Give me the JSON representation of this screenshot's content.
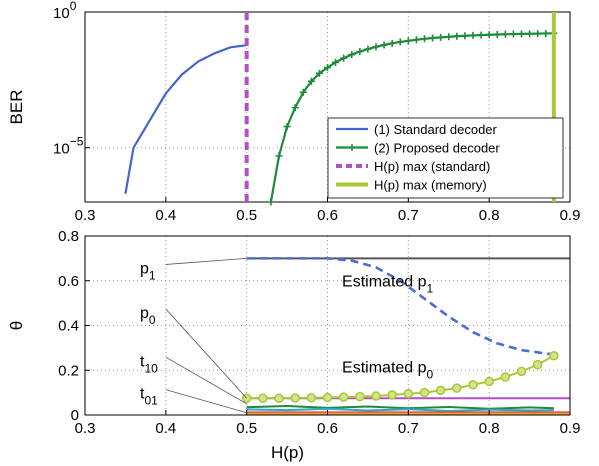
{
  "chart_data": [
    {
      "type": "line",
      "panel": "top",
      "ylabel": "BER",
      "xlim": [
        0.3,
        0.9
      ],
      "ylim_log10": [
        -7,
        0
      ],
      "x_ticks": [
        0.3,
        0.4,
        0.5,
        0.6,
        0.7,
        0.8,
        0.9
      ],
      "x_tick_labels": [
        "0.3",
        "0.4",
        "0.5",
        "0.6",
        "0.7",
        "0.8",
        "0.9"
      ],
      "y_ticks_log10": [
        0,
        -5
      ],
      "y_tick_labels": [
        {
          "base": "10",
          "exp": "0"
        },
        {
          "base": "10",
          "exp": "−5"
        }
      ],
      "grid": true,
      "scale": "log",
      "legend_position": "lower-right",
      "series": [
        {
          "name": "(1) Standard decoder",
          "color": "#4466cc",
          "marker": "none",
          "x": [
            0.35,
            0.36,
            0.38,
            0.4,
            0.42,
            0.44,
            0.46,
            0.48,
            0.5
          ],
          "y": [
            2e-07,
            1e-05,
            0.0001,
            0.001,
            0.005,
            0.015,
            0.03,
            0.05,
            0.06
          ]
        },
        {
          "name": "(2) Proposed decoder",
          "color": "#1e8a3c",
          "marker": "plus",
          "x": [
            0.53,
            0.54,
            0.55,
            0.56,
            0.57,
            0.58,
            0.59,
            0.6,
            0.61,
            0.62,
            0.63,
            0.64,
            0.65,
            0.66,
            0.67,
            0.68,
            0.69,
            0.7,
            0.71,
            0.72,
            0.73,
            0.74,
            0.75,
            0.76,
            0.77,
            0.78,
            0.79,
            0.8,
            0.81,
            0.82,
            0.83,
            0.84,
            0.85,
            0.86,
            0.87,
            0.88
          ],
          "y": [
            1e-07,
            5e-06,
            6e-05,
            0.0003,
            0.0011,
            0.0028,
            0.0055,
            0.009,
            0.014,
            0.02,
            0.027,
            0.035,
            0.043,
            0.052,
            0.061,
            0.07,
            0.079,
            0.087,
            0.095,
            0.103,
            0.11,
            0.116,
            0.122,
            0.128,
            0.133,
            0.137,
            0.141,
            0.145,
            0.148,
            0.151,
            0.154,
            0.156,
            0.158,
            0.16,
            0.162,
            0.164
          ]
        },
        {
          "name": "H(p) max (standard)",
          "color": "#b44fc8",
          "style": "dashed-vertical",
          "x": [
            0.5
          ]
        },
        {
          "name": "H(p) max (memory)",
          "color": "#a8c83a",
          "style": "solid-vertical",
          "x": [
            0.88
          ]
        }
      ]
    },
    {
      "type": "line",
      "panel": "bottom",
      "xlabel": "H(p)",
      "ylabel": "θ",
      "xlim": [
        0.3,
        0.9
      ],
      "ylim": [
        0,
        0.8
      ],
      "x_ticks": [
        0.3,
        0.4,
        0.5,
        0.6,
        0.7,
        0.8,
        0.9
      ],
      "x_tick_labels": [
        "0.3",
        "0.4",
        "0.5",
        "0.6",
        "0.7",
        "0.8",
        "0.9"
      ],
      "y_ticks": [
        0,
        0.2,
        0.4,
        0.6,
        0.8
      ],
      "y_tick_labels": [
        "0",
        "0.2",
        "0.4",
        "0.6",
        "0.8"
      ],
      "grid": true,
      "series": [
        {
          "color": "#555555",
          "style": "solid",
          "x": [
            0.5,
            0.9
          ],
          "y": [
            0.7,
            0.7
          ]
        },
        {
          "color": "#4a6fd0",
          "style": "dashed",
          "x": [
            0.5,
            0.55,
            0.6,
            0.63,
            0.66,
            0.69,
            0.72,
            0.75,
            0.78,
            0.81,
            0.84,
            0.86,
            0.88
          ],
          "y": [
            0.7,
            0.7,
            0.7,
            0.69,
            0.66,
            0.6,
            0.52,
            0.44,
            0.37,
            0.32,
            0.29,
            0.28,
            0.27
          ]
        },
        {
          "color": "#b44fc8",
          "style": "solid",
          "x": [
            0.5,
            0.9
          ],
          "y": [
            0.075,
            0.075
          ]
        },
        {
          "color": "#a8c83a",
          "style": "solid",
          "marker": "circle",
          "x": [
            0.5,
            0.52,
            0.54,
            0.56,
            0.58,
            0.6,
            0.62,
            0.64,
            0.66,
            0.68,
            0.7,
            0.72,
            0.74,
            0.76,
            0.78,
            0.8,
            0.82,
            0.84,
            0.86,
            0.88
          ],
          "y": [
            0.075,
            0.075,
            0.075,
            0.076,
            0.077,
            0.078,
            0.08,
            0.082,
            0.085,
            0.09,
            0.095,
            0.1,
            0.11,
            0.12,
            0.135,
            0.15,
            0.17,
            0.195,
            0.225,
            0.265
          ]
        },
        {
          "color": "#1e8a3c",
          "style": "solid",
          "x": [
            0.5,
            0.55,
            0.6,
            0.65,
            0.7,
            0.75,
            0.8,
            0.85,
            0.88
          ],
          "y": [
            0.035,
            0.04,
            0.032,
            0.038,
            0.03,
            0.036,
            0.028,
            0.034,
            0.03
          ]
        },
        {
          "color": "#2aa8c8",
          "style": "solid",
          "x": [
            0.5,
            0.55,
            0.6,
            0.65,
            0.7,
            0.75,
            0.8,
            0.85,
            0.88
          ],
          "y": [
            0.025,
            0.022,
            0.028,
            0.02,
            0.026,
            0.018,
            0.024,
            0.02,
            0.022
          ]
        },
        {
          "color": "#e04040",
          "style": "solid",
          "x": [
            0.5,
            0.9
          ],
          "y": [
            0.012,
            0.012
          ]
        },
        {
          "color": "#f0a030",
          "style": "solid",
          "x": [
            0.5,
            0.9
          ],
          "y": [
            0.006,
            0.006
          ]
        }
      ],
      "annotations": [
        {
          "text": "Estimated p",
          "sub": "1",
          "x": 0.618,
          "y": 0.575
        },
        {
          "text": "Estimated p",
          "sub": "0",
          "x": 0.618,
          "y": 0.19
        }
      ],
      "param_labels": [
        {
          "text": "p",
          "sub": "1",
          "label_y": 0.655,
          "target_y": 0.7
        },
        {
          "text": "p",
          "sub": "0",
          "label_y": 0.455,
          "target_y": 0.075
        },
        {
          "text": "t",
          "sub": "10",
          "label_y": 0.24,
          "target_y": 0.05
        },
        {
          "text": "t",
          "sub": "01",
          "label_y": 0.095,
          "target_y": 0.01
        }
      ]
    }
  ]
}
